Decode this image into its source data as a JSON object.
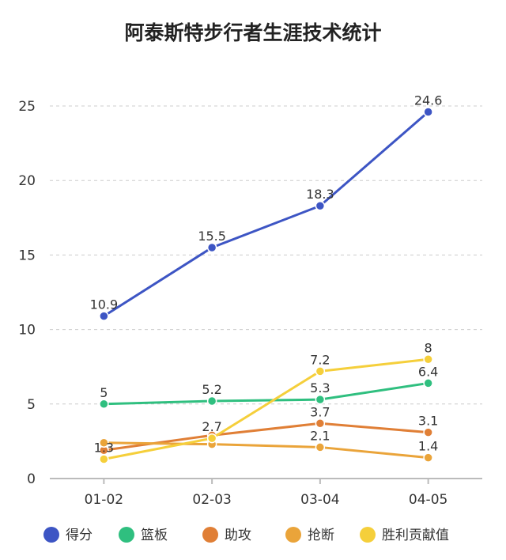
{
  "chart_data": {
    "type": "line",
    "title": "阿泰斯特步行者生涯技术统计",
    "categories": [
      "01-02",
      "02-03",
      "03-04",
      "04-05"
    ],
    "ylim": [
      0,
      25
    ],
    "yticks": [
      0,
      5,
      10,
      15,
      20,
      25
    ],
    "grid": true,
    "legend_position": "bottom",
    "series": [
      {
        "name": "得分",
        "color": "#3d55c4",
        "values": [
          10.9,
          15.5,
          18.3,
          24.6
        ],
        "show_labels": [
          true,
          true,
          true,
          true
        ]
      },
      {
        "name": "篮板",
        "color": "#2fbf7f",
        "values": [
          5,
          5.2,
          5.3,
          6.4
        ],
        "show_labels": [
          true,
          true,
          true,
          true
        ]
      },
      {
        "name": "助攻",
        "color": "#e07f36",
        "values": [
          1.9,
          2.9,
          3.7,
          3.1
        ],
        "show_labels": [
          false,
          false,
          true,
          true
        ]
      },
      {
        "name": "抢断",
        "color": "#eaa43a",
        "values": [
          2.4,
          2.3,
          2.1,
          1.4
        ],
        "show_labels": [
          false,
          false,
          true,
          true
        ]
      },
      {
        "name": "胜利贡献值",
        "color": "#f5cf3b",
        "values": [
          1.3,
          2.7,
          7.2,
          8
        ],
        "show_labels": [
          true,
          true,
          true,
          true
        ]
      }
    ]
  }
}
